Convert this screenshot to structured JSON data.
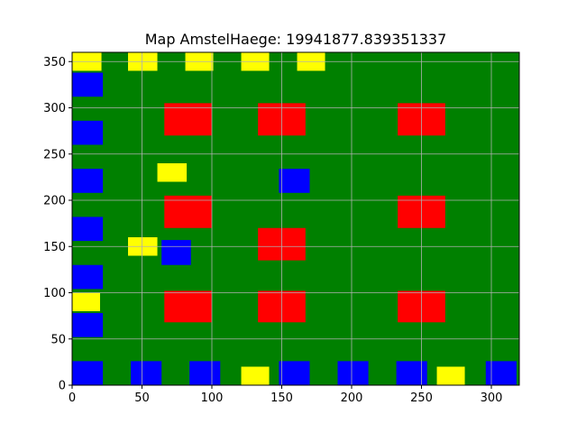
{
  "title": "Map AmstelHaege: 19941877.839351337",
  "colors": {
    "background": "#008000",
    "water": "#0000ff",
    "small_house": "#ffff00",
    "large_house": "#ff0000",
    "grid": "#b0b0b0",
    "axes": "#000000"
  },
  "chart_data": {
    "type": "map",
    "title": "Map AmstelHaege: 19941877.839351337",
    "xlim": [
      0,
      320
    ],
    "ylim": [
      0,
      360
    ],
    "grid": true,
    "x_ticks": [
      0,
      50,
      100,
      150,
      200,
      250,
      300
    ],
    "y_ticks": [
      0,
      50,
      100,
      150,
      200,
      250,
      300,
      350
    ],
    "x_tick_labels": [
      "0",
      "50",
      "100",
      "150",
      "200",
      "250",
      "300"
    ],
    "y_tick_labels": [
      "0",
      "50",
      "100",
      "150",
      "200",
      "250",
      "300",
      "350"
    ],
    "rects": [
      {
        "name": "blue-plot",
        "color": "blue",
        "x0": 0,
        "x1": 22,
        "y0": 0,
        "y1": 26
      },
      {
        "name": "blue-plot",
        "color": "blue",
        "x0": 42,
        "x1": 64,
        "y0": 0,
        "y1": 26
      },
      {
        "name": "blue-plot",
        "color": "blue",
        "x0": 84,
        "x1": 106,
        "y0": 0,
        "y1": 26
      },
      {
        "name": "blue-plot",
        "color": "blue",
        "x0": 148,
        "x1": 170,
        "y0": 0,
        "y1": 26
      },
      {
        "name": "blue-plot",
        "color": "blue",
        "x0": 190,
        "x1": 212,
        "y0": 0,
        "y1": 26
      },
      {
        "name": "blue-plot",
        "color": "blue",
        "x0": 232,
        "x1": 254,
        "y0": 0,
        "y1": 26
      },
      {
        "name": "blue-plot",
        "color": "blue",
        "x0": 296,
        "x1": 318,
        "y0": 0,
        "y1": 26
      },
      {
        "name": "yellow-house",
        "color": "yellow",
        "x0": 121,
        "x1": 141,
        "y0": 0,
        "y1": 20
      },
      {
        "name": "yellow-house",
        "color": "yellow",
        "x0": 261,
        "x1": 281,
        "y0": 0,
        "y1": 20
      },
      {
        "name": "blue-plot",
        "color": "blue",
        "x0": 0,
        "x1": 22,
        "y0": 52,
        "y1": 78
      },
      {
        "name": "yellow-house",
        "color": "yellow",
        "x0": 0,
        "x1": 20,
        "y0": 80,
        "y1": 100
      },
      {
        "name": "blue-plot",
        "color": "blue",
        "x0": 0,
        "x1": 22,
        "y0": 104,
        "y1": 130
      },
      {
        "name": "blue-plot",
        "color": "blue",
        "x0": 0,
        "x1": 22,
        "y0": 156,
        "y1": 182
      },
      {
        "name": "blue-plot",
        "color": "blue",
        "x0": 0,
        "x1": 22,
        "y0": 208,
        "y1": 234
      },
      {
        "name": "blue-plot",
        "color": "blue",
        "x0": 0,
        "x1": 22,
        "y0": 260,
        "y1": 286
      },
      {
        "name": "blue-plot",
        "color": "blue",
        "x0": 0,
        "x1": 22,
        "y0": 312,
        "y1": 338
      },
      {
        "name": "red-house",
        "color": "red",
        "x0": 66,
        "x1": 100,
        "y0": 68,
        "y1": 102
      },
      {
        "name": "red-house",
        "color": "red",
        "x0": 133,
        "x1": 167,
        "y0": 68,
        "y1": 102
      },
      {
        "name": "red-house",
        "color": "red",
        "x0": 233,
        "x1": 267,
        "y0": 68,
        "y1": 102
      },
      {
        "name": "yellow-house",
        "color": "yellow",
        "x0": 40,
        "x1": 61,
        "y0": 140,
        "y1": 160
      },
      {
        "name": "blue-plot",
        "color": "blue",
        "x0": 64,
        "x1": 85,
        "y0": 130,
        "y1": 157
      },
      {
        "name": "red-house",
        "color": "red",
        "x0": 133,
        "x1": 167,
        "y0": 135,
        "y1": 170
      },
      {
        "name": "red-house",
        "color": "red",
        "x0": 66,
        "x1": 100,
        "y0": 170,
        "y1": 205
      },
      {
        "name": "red-house",
        "color": "red",
        "x0": 233,
        "x1": 267,
        "y0": 170,
        "y1": 205
      },
      {
        "name": "yellow-house",
        "color": "yellow",
        "x0": 61,
        "x1": 82,
        "y0": 220,
        "y1": 240
      },
      {
        "name": "blue-plot",
        "color": "blue",
        "x0": 148,
        "x1": 170,
        "y0": 208,
        "y1": 234
      },
      {
        "name": "red-house",
        "color": "red",
        "x0": 66,
        "x1": 100,
        "y0": 270,
        "y1": 305
      },
      {
        "name": "red-house",
        "color": "red",
        "x0": 133,
        "x1": 167,
        "y0": 270,
        "y1": 305
      },
      {
        "name": "red-house",
        "color": "red",
        "x0": 233,
        "x1": 267,
        "y0": 270,
        "y1": 305
      },
      {
        "name": "yellow-house",
        "color": "yellow",
        "x0": 0,
        "x1": 21,
        "y0": 340,
        "y1": 360
      },
      {
        "name": "yellow-house",
        "color": "yellow",
        "x0": 40,
        "x1": 61,
        "y0": 340,
        "y1": 360
      },
      {
        "name": "yellow-house",
        "color": "yellow",
        "x0": 81,
        "x1": 101,
        "y0": 340,
        "y1": 360
      },
      {
        "name": "yellow-house",
        "color": "yellow",
        "x0": 121,
        "x1": 141,
        "y0": 340,
        "y1": 360
      },
      {
        "name": "yellow-house",
        "color": "yellow",
        "x0": 161,
        "x1": 181,
        "y0": 340,
        "y1": 360
      }
    ]
  }
}
